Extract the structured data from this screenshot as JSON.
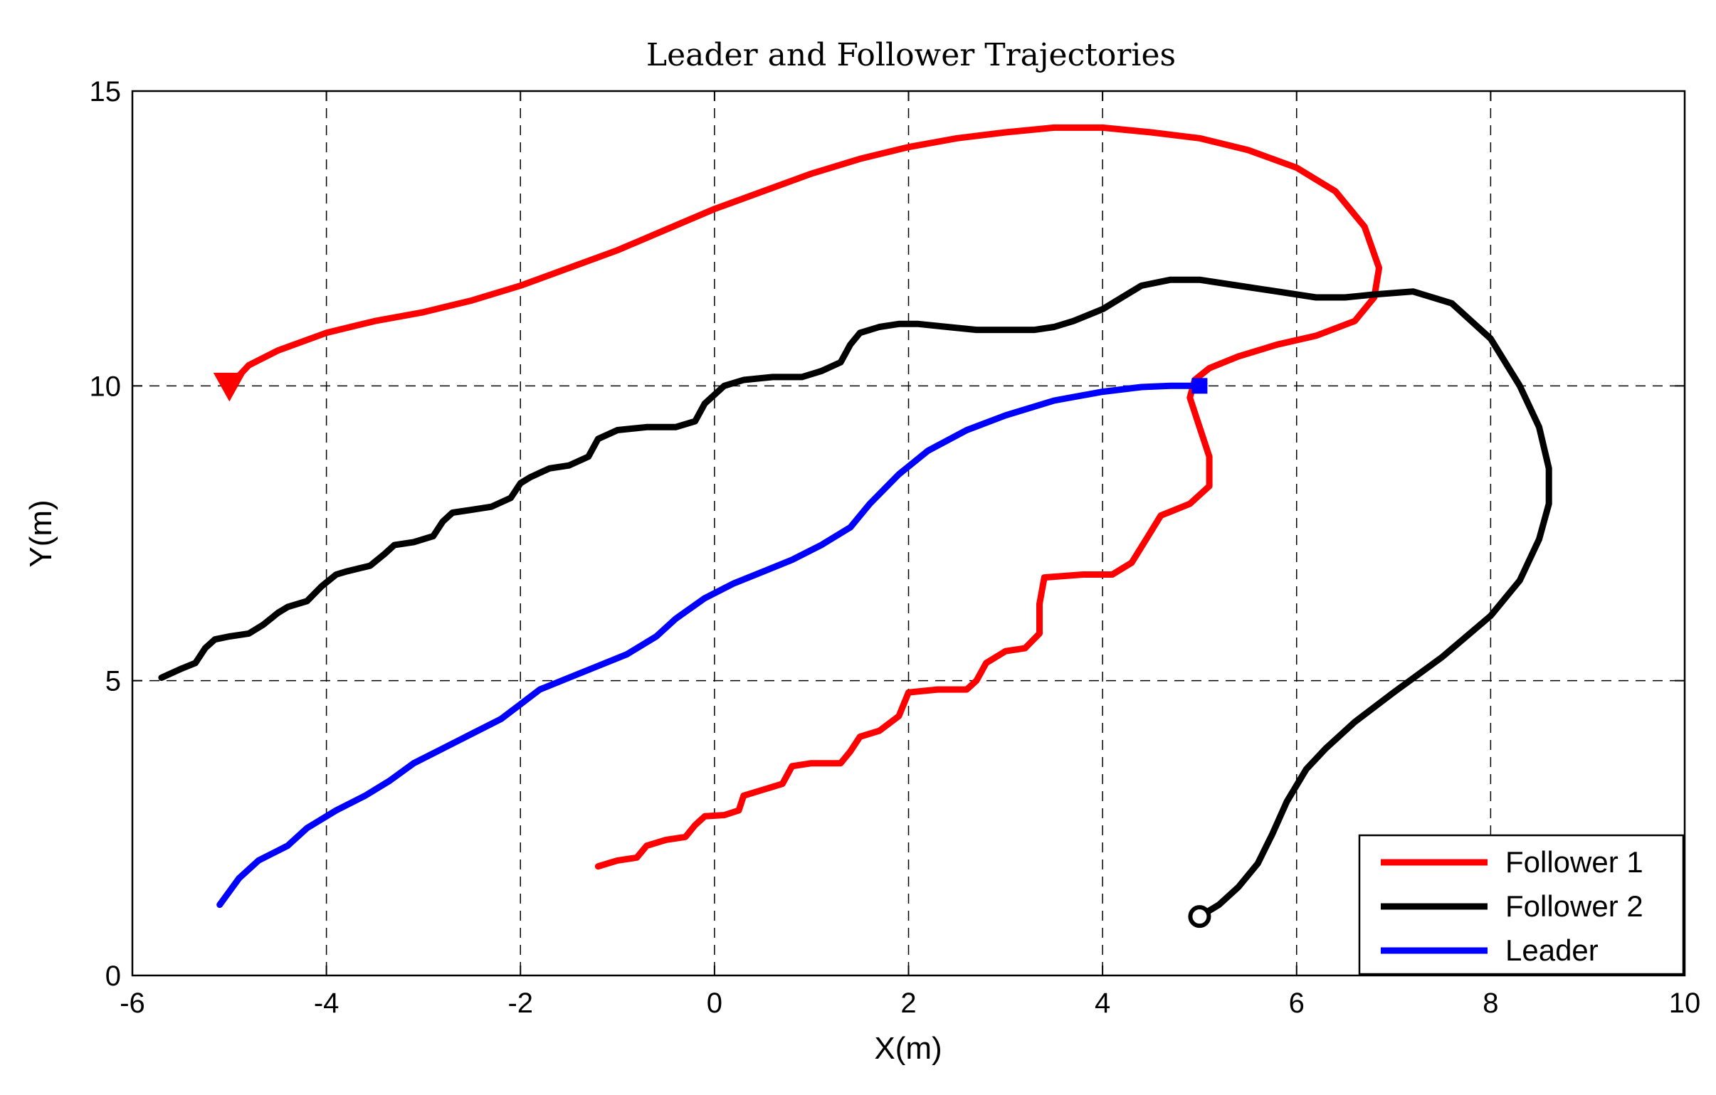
{
  "chart_data": {
    "type": "line",
    "title": "Leader and Follower Trajectories",
    "xlabel": "X(m)",
    "ylabel": "Y(m)",
    "xlim": [
      -6,
      10
    ],
    "ylim": [
      0,
      15
    ],
    "xticks": [
      -6,
      -4,
      -2,
      0,
      2,
      4,
      6,
      8,
      10
    ],
    "yticks": [
      0,
      5,
      10,
      15
    ],
    "xtick_labels": [
      "-6",
      "-4",
      "-2",
      "0",
      "2",
      "4",
      "6",
      "8",
      "10"
    ],
    "ytick_labels": [
      "0",
      "5",
      "10",
      "15"
    ],
    "grid": true,
    "legend_position": "bottom-right",
    "series": [
      {
        "name": "Follower 1",
        "color": "#ff0000",
        "start_marker": "triangle-down",
        "points": [
          [
            -5.0,
            10.0
          ],
          [
            -4.8,
            10.35
          ],
          [
            -4.5,
            10.6
          ],
          [
            -4.0,
            10.9
          ],
          [
            -3.5,
            11.1
          ],
          [
            -3.0,
            11.25
          ],
          [
            -2.5,
            11.45
          ],
          [
            -2.0,
            11.7
          ],
          [
            -1.5,
            12.0
          ],
          [
            -1.0,
            12.3
          ],
          [
            -0.5,
            12.65
          ],
          [
            0.0,
            13.0
          ],
          [
            0.5,
            13.3
          ],
          [
            1.0,
            13.6
          ],
          [
            1.5,
            13.85
          ],
          [
            2.0,
            14.05
          ],
          [
            2.5,
            14.2
          ],
          [
            3.0,
            14.3
          ],
          [
            3.5,
            14.38
          ],
          [
            4.0,
            14.38
          ],
          [
            4.5,
            14.3
          ],
          [
            5.0,
            14.2
          ],
          [
            5.5,
            14.0
          ],
          [
            6.0,
            13.7
          ],
          [
            6.4,
            13.3
          ],
          [
            6.7,
            12.7
          ],
          [
            6.85,
            12.0
          ],
          [
            6.8,
            11.5
          ],
          [
            6.6,
            11.1
          ],
          [
            6.2,
            10.85
          ],
          [
            5.8,
            10.7
          ],
          [
            5.4,
            10.5
          ],
          [
            5.1,
            10.3
          ],
          [
            4.95,
            10.1
          ],
          [
            4.9,
            9.8
          ],
          [
            5.0,
            9.3
          ],
          [
            5.1,
            8.8
          ],
          [
            5.1,
            8.3
          ],
          [
            4.9,
            8.0
          ],
          [
            4.6,
            7.8
          ],
          [
            4.45,
            7.4
          ],
          [
            4.3,
            7.0
          ],
          [
            4.1,
            6.8
          ],
          [
            3.8,
            6.8
          ],
          [
            3.4,
            6.75
          ],
          [
            3.35,
            6.3
          ],
          [
            3.35,
            5.8
          ],
          [
            3.2,
            5.55
          ],
          [
            3.0,
            5.5
          ],
          [
            2.8,
            5.3
          ],
          [
            2.7,
            5.0
          ],
          [
            2.6,
            4.85
          ],
          [
            2.3,
            4.85
          ],
          [
            2.0,
            4.8
          ],
          [
            1.9,
            4.4
          ],
          [
            1.7,
            4.15
          ],
          [
            1.5,
            4.05
          ],
          [
            1.4,
            3.8
          ],
          [
            1.3,
            3.6
          ],
          [
            1.0,
            3.6
          ],
          [
            0.8,
            3.55
          ],
          [
            0.7,
            3.25
          ],
          [
            0.5,
            3.15
          ],
          [
            0.3,
            3.05
          ],
          [
            0.25,
            2.8
          ],
          [
            0.1,
            2.72
          ],
          [
            -0.1,
            2.7
          ],
          [
            -0.2,
            2.55
          ],
          [
            -0.3,
            2.35
          ],
          [
            -0.5,
            2.3
          ],
          [
            -0.7,
            2.2
          ],
          [
            -0.8,
            2.0
          ],
          [
            -1.0,
            1.95
          ],
          [
            -1.1,
            1.9
          ],
          [
            -1.2,
            1.85
          ]
        ]
      },
      {
        "name": "Follower 2",
        "color": "#000000",
        "start_marker": "circle",
        "points": [
          [
            5.0,
            1.0
          ],
          [
            5.2,
            1.2
          ],
          [
            5.4,
            1.5
          ],
          [
            5.6,
            1.9
          ],
          [
            5.75,
            2.4
          ],
          [
            5.9,
            2.95
          ],
          [
            6.1,
            3.5
          ],
          [
            6.3,
            3.85
          ],
          [
            6.6,
            4.3
          ],
          [
            7.0,
            4.8
          ],
          [
            7.5,
            5.4
          ],
          [
            8.0,
            6.1
          ],
          [
            8.3,
            6.7
          ],
          [
            8.5,
            7.4
          ],
          [
            8.6,
            8.0
          ],
          [
            8.6,
            8.6
          ],
          [
            8.5,
            9.3
          ],
          [
            8.3,
            10.0
          ],
          [
            8.0,
            10.8
          ],
          [
            7.6,
            11.4
          ],
          [
            7.2,
            11.6
          ],
          [
            6.8,
            11.55
          ],
          [
            6.5,
            11.5
          ],
          [
            6.2,
            11.5
          ],
          [
            5.8,
            11.6
          ],
          [
            5.4,
            11.7
          ],
          [
            5.0,
            11.8
          ],
          [
            4.7,
            11.8
          ],
          [
            4.4,
            11.7
          ],
          [
            4.2,
            11.5
          ],
          [
            4.0,
            11.3
          ],
          [
            3.7,
            11.1
          ],
          [
            3.5,
            11.0
          ],
          [
            3.3,
            10.95
          ],
          [
            3.0,
            10.95
          ],
          [
            2.7,
            10.95
          ],
          [
            2.4,
            11.0
          ],
          [
            2.1,
            11.05
          ],
          [
            1.9,
            11.05
          ],
          [
            1.7,
            11.0
          ],
          [
            1.5,
            10.9
          ],
          [
            1.4,
            10.7
          ],
          [
            1.3,
            10.4
          ],
          [
            1.1,
            10.25
          ],
          [
            0.9,
            10.15
          ],
          [
            0.6,
            10.15
          ],
          [
            0.3,
            10.1
          ],
          [
            0.1,
            10.0
          ],
          [
            -0.1,
            9.7
          ],
          [
            -0.2,
            9.4
          ],
          [
            -0.4,
            9.3
          ],
          [
            -0.7,
            9.3
          ],
          [
            -1.0,
            9.25
          ],
          [
            -1.2,
            9.1
          ],
          [
            -1.3,
            8.8
          ],
          [
            -1.5,
            8.65
          ],
          [
            -1.7,
            8.6
          ],
          [
            -1.9,
            8.45
          ],
          [
            -2.0,
            8.35
          ],
          [
            -2.1,
            8.1
          ],
          [
            -2.3,
            7.95
          ],
          [
            -2.5,
            7.9
          ],
          [
            -2.7,
            7.85
          ],
          [
            -2.8,
            7.7
          ],
          [
            -2.9,
            7.45
          ],
          [
            -3.1,
            7.35
          ],
          [
            -3.3,
            7.3
          ],
          [
            -3.4,
            7.15
          ],
          [
            -3.55,
            6.95
          ],
          [
            -3.8,
            6.85
          ],
          [
            -3.9,
            6.8
          ],
          [
            -4.05,
            6.6
          ],
          [
            -4.2,
            6.35
          ],
          [
            -4.4,
            6.25
          ],
          [
            -4.5,
            6.15
          ],
          [
            -4.65,
            5.95
          ],
          [
            -4.8,
            5.8
          ],
          [
            -5.0,
            5.75
          ],
          [
            -5.15,
            5.7
          ],
          [
            -5.25,
            5.55
          ],
          [
            -5.35,
            5.3
          ],
          [
            -5.5,
            5.2
          ],
          [
            -5.7,
            5.05
          ]
        ]
      },
      {
        "name": "Leader",
        "color": "#0000ff",
        "start_marker": "square",
        "points": [
          [
            5.0,
            10.0
          ],
          [
            4.7,
            10.0
          ],
          [
            4.4,
            9.98
          ],
          [
            4.0,
            9.9
          ],
          [
            3.5,
            9.75
          ],
          [
            3.0,
            9.5
          ],
          [
            2.6,
            9.25
          ],
          [
            2.2,
            8.9
          ],
          [
            1.9,
            8.5
          ],
          [
            1.6,
            8.0
          ],
          [
            1.4,
            7.6
          ],
          [
            1.1,
            7.3
          ],
          [
            0.8,
            7.05
          ],
          [
            0.5,
            6.85
          ],
          [
            0.2,
            6.65
          ],
          [
            -0.1,
            6.4
          ],
          [
            -0.4,
            6.05
          ],
          [
            -0.6,
            5.75
          ],
          [
            -0.9,
            5.45
          ],
          [
            -1.2,
            5.25
          ],
          [
            -1.5,
            5.05
          ],
          [
            -1.8,
            4.85
          ],
          [
            -2.0,
            4.6
          ],
          [
            -2.2,
            4.35
          ],
          [
            -2.5,
            4.1
          ],
          [
            -2.8,
            3.85
          ],
          [
            -3.1,
            3.6
          ],
          [
            -3.35,
            3.3
          ],
          [
            -3.6,
            3.05
          ],
          [
            -3.9,
            2.8
          ],
          [
            -4.2,
            2.5
          ],
          [
            -4.4,
            2.2
          ],
          [
            -4.7,
            1.95
          ],
          [
            -4.9,
            1.65
          ],
          [
            -5.1,
            1.2
          ]
        ]
      }
    ]
  }
}
